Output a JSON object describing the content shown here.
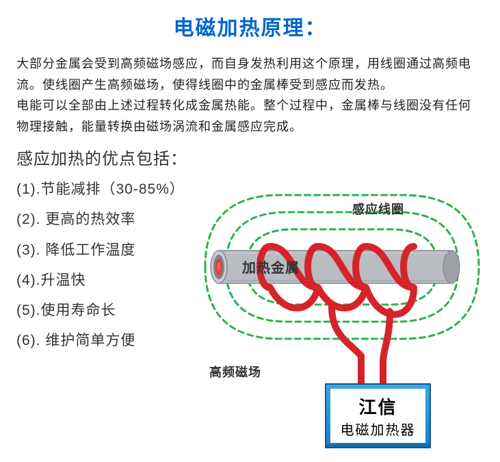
{
  "title": "电磁加热原理：",
  "title_color": "#0066cc",
  "description": "大部分金属会受到高频磁场感应，而自身发热利用这个原理，用线圈通过高频电流。使线圈产生高频磁场，使得线圈中的金属棒受到感应而发热。\n电能可以全部由上述过程转化成金属热能。整个过程中，金属棒与线圈没有任何物理接触，能量转换由磁场涡流和金属感应完成。",
  "advantages_heading": "感应加热的优点包括：",
  "advantages": [
    "(1).节能减排（30-85%）",
    "(2). 更高的热效率",
    "(3). 降低工作温度",
    "(4).升温快",
    "(5).使用寿命长",
    "(6). 维护简单方便"
  ],
  "diagram": {
    "type": "infographic",
    "labels": {
      "coil": "感应线圈",
      "metal": "加热金属",
      "field": "高频磁场"
    },
    "device": {
      "name": "江信",
      "subtitle": "电磁加热器"
    },
    "colors": {
      "field_line": "#2bb24c",
      "coil": "#d6232a",
      "rod_outer": "#b9bcc0",
      "rod_inner": "#808489",
      "rod_core": "#e23b3b",
      "device_top": "#3da8e0",
      "device_bottom": "#1a7fc4",
      "device_border": "#0e5a8e",
      "background": "#ffffff",
      "text": "#333333"
    },
    "styling": {
      "field_line_width": 3,
      "field_dash": "8 6",
      "coil_width": 10,
      "rod_length": 340,
      "rod_height": 48,
      "num_coil_loops": 4,
      "num_field_lines": 3
    }
  }
}
